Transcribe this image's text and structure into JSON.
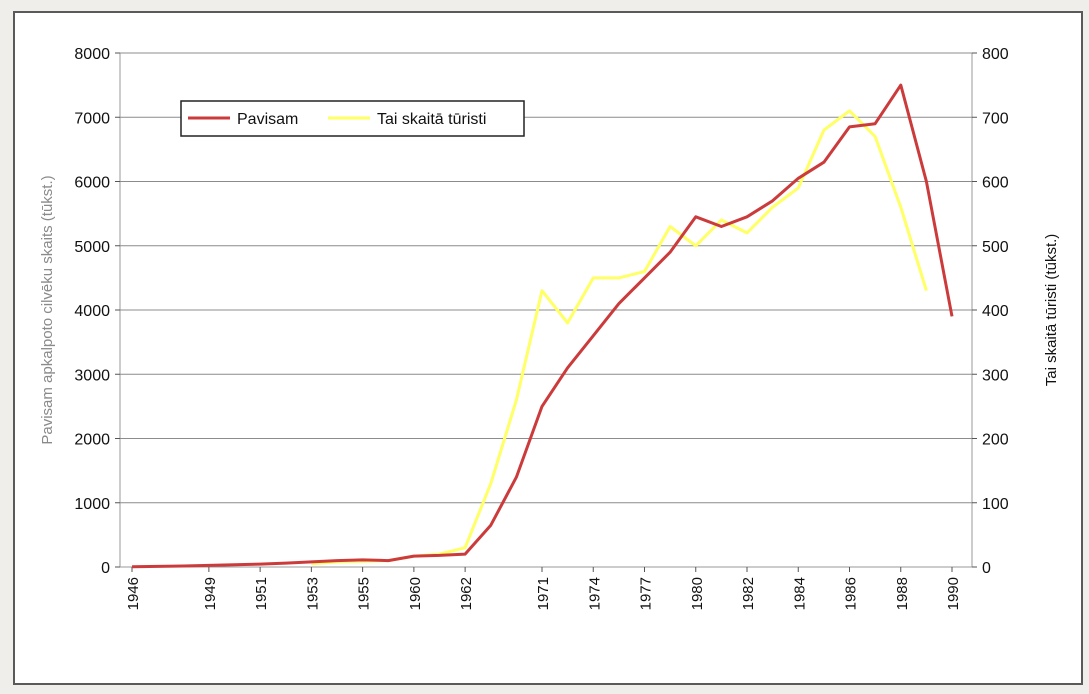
{
  "chart_data": {
    "type": "line",
    "x": [
      "1946",
      "1947",
      "1948",
      "1949",
      "1950",
      "1951",
      "1952",
      "1953",
      "1954",
      "1955",
      "1958",
      "1960",
      "1961",
      "1962",
      "1969",
      "1970",
      "1971",
      "1973",
      "1974",
      "1975",
      "1977",
      "1979",
      "1980",
      "1981",
      "1982",
      "1983",
      "1984",
      "1985",
      "1986",
      "1987",
      "1988",
      "1989",
      "1990"
    ],
    "xticks": [
      "1946",
      "1949",
      "1951",
      "1953",
      "1955",
      "1960",
      "1962",
      "1971",
      "1974",
      "1977",
      "1980",
      "1982",
      "1984",
      "1986",
      "1988",
      "1990"
    ],
    "series": [
      {
        "name": "Pavisam",
        "axis": "left",
        "color": "#cc3b3b",
        "values": [
          5,
          10,
          15,
          25,
          35,
          45,
          60,
          80,
          100,
          110,
          100,
          170,
          180,
          200,
          650,
          1400,
          2500,
          3100,
          3600,
          4100,
          4500,
          4900,
          5450,
          5300,
          5450,
          5700,
          6050,
          6300,
          6850,
          6900,
          7500,
          6000,
          3900
        ]
      },
      {
        "name": "Tai skaitā tūristi",
        "axis": "right",
        "color": "#ffff66",
        "values": [
          null,
          null,
          null,
          null,
          null,
          null,
          null,
          5,
          8,
          9,
          10,
          17,
          20,
          30,
          130,
          260,
          430,
          380,
          450,
          450,
          460,
          530,
          500,
          540,
          520,
          560,
          590,
          680,
          710,
          670,
          560,
          430,
          null
        ]
      }
    ],
    "ylabel_left": "Pavisam apkalpoto cilvēku skaits (tūkst.)",
    "ylabel_right": "Tai skaitā tūristi (tūkst.)",
    "ylim_left": [
      0,
      8000
    ],
    "ylim_right": [
      0,
      800
    ],
    "yticks_left": [
      "0",
      "1000",
      "2000",
      "3000",
      "4000",
      "5000",
      "6000",
      "7000",
      "8000"
    ],
    "yticks_right": [
      "0",
      "100",
      "200",
      "300",
      "400",
      "500",
      "600",
      "700",
      "800"
    ],
    "grid": true,
    "legend": "top-left"
  }
}
